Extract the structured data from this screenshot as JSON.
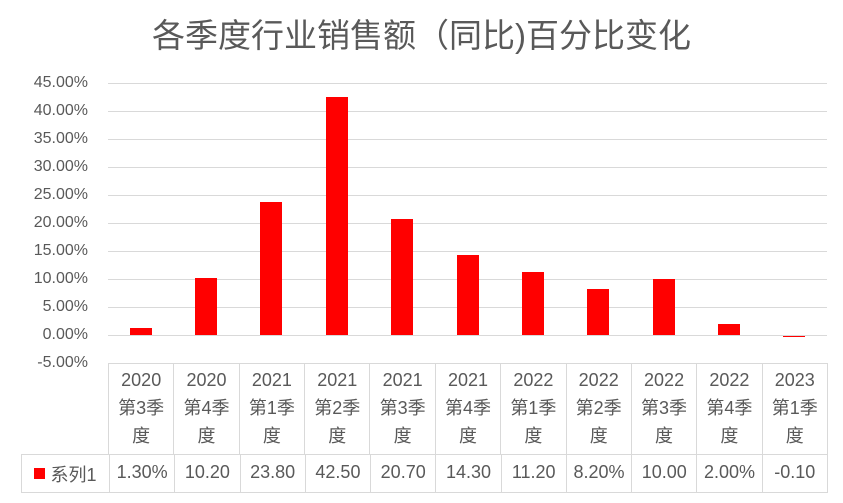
{
  "title": "各季度行业销售额（同比)百分比变化",
  "colors": {
    "bar": "#FF0000",
    "grid": "#D9D9D9",
    "table_border": "#D9D9D9",
    "text": "#595959",
    "background": "#FFFFFF"
  },
  "chart_data": {
    "type": "bar",
    "title": "各季度行业销售额（同比)百分比变化",
    "categories": [
      "2020第3季度",
      "2020第4季度",
      "2021第1季度",
      "2021第2季度",
      "2021第3季度",
      "2021第4季度",
      "2022第1季度",
      "2022第2季度",
      "2022第3季度",
      "2022第4季度",
      "2023第1季度"
    ],
    "series": [
      {
        "name": "系列1",
        "color": "#FF0000",
        "values": [
          1.3,
          10.2,
          23.8,
          42.5,
          20.7,
          14.3,
          11.2,
          8.2,
          10.0,
          2.0,
          -0.1
        ]
      }
    ],
    "table_values": [
      "1.30%",
      "10.20",
      "23.80",
      "42.50",
      "20.70",
      "14.30",
      "11.20",
      "8.20%",
      "10.00",
      "2.00%",
      "-0.10"
    ],
    "y_ticks": [
      {
        "value": 45,
        "label": "45.00%"
      },
      {
        "value": 40,
        "label": "40.00%"
      },
      {
        "value": 35,
        "label": "35.00%"
      },
      {
        "value": 30,
        "label": "30.00%"
      },
      {
        "value": 25,
        "label": "25.00%"
      },
      {
        "value": 20,
        "label": "20.00%"
      },
      {
        "value": 15,
        "label": "15.00%"
      },
      {
        "value": 10,
        "label": "10.00%"
      },
      {
        "value": 5,
        "label": "5.00%"
      },
      {
        "value": 0,
        "label": "0.00%"
      },
      {
        "value": -5,
        "label": "-5.00%"
      }
    ],
    "ylim": [
      -5,
      45
    ],
    "value_unit": "percent",
    "grid": true,
    "legend_position": "data-table",
    "xlabel": "",
    "ylabel": ""
  }
}
